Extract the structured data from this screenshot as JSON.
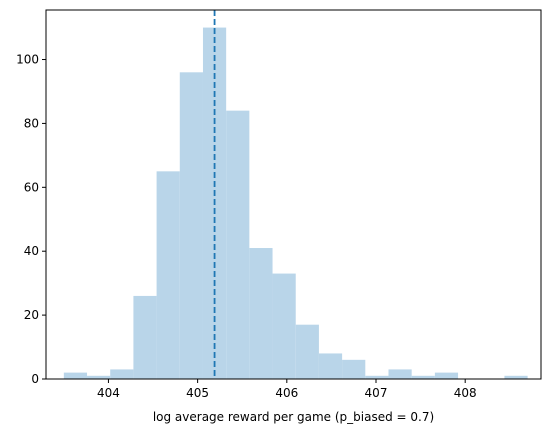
{
  "chart_data": {
    "type": "bar",
    "subtype": "histogram",
    "title": "",
    "xlabel": "log average reward per game (p_biased = 0.7)",
    "ylabel": "",
    "xlim": [
      403.3,
      408.85
    ],
    "ylim": [
      0,
      115.5
    ],
    "xticks": [
      404,
      405,
      406,
      407,
      408
    ],
    "yticks": [
      0,
      20,
      40,
      60,
      80,
      100
    ],
    "bar_color": "#b9d5e9",
    "line_color": "#1f77b4",
    "bins": [
      {
        "x0": 403.5,
        "x1": 403.76,
        "count": 2
      },
      {
        "x0": 403.76,
        "x1": 404.02,
        "count": 1
      },
      {
        "x0": 404.02,
        "x1": 404.28,
        "count": 3
      },
      {
        "x0": 404.28,
        "x1": 404.54,
        "count": 26
      },
      {
        "x0": 404.54,
        "x1": 404.8,
        "count": 65
      },
      {
        "x0": 404.8,
        "x1": 405.06,
        "count": 96
      },
      {
        "x0": 405.06,
        "x1": 405.32,
        "count": 110
      },
      {
        "x0": 405.32,
        "x1": 405.58,
        "count": 84
      },
      {
        "x0": 405.58,
        "x1": 405.84,
        "count": 41
      },
      {
        "x0": 405.84,
        "x1": 406.1,
        "count": 33
      },
      {
        "x0": 406.1,
        "x1": 406.36,
        "count": 17
      },
      {
        "x0": 406.36,
        "x1": 406.62,
        "count": 8
      },
      {
        "x0": 406.62,
        "x1": 406.88,
        "count": 6
      },
      {
        "x0": 406.88,
        "x1": 407.14,
        "count": 1
      },
      {
        "x0": 407.14,
        "x1": 407.4,
        "count": 3
      },
      {
        "x0": 407.4,
        "x1": 407.66,
        "count": 1
      },
      {
        "x0": 407.66,
        "x1": 407.92,
        "count": 2
      },
      {
        "x0": 407.92,
        "x1": 408.18,
        "count": 0
      },
      {
        "x0": 408.18,
        "x1": 408.44,
        "count": 0
      },
      {
        "x0": 408.44,
        "x1": 408.7,
        "count": 1
      }
    ],
    "reference_line": {
      "x": 405.19,
      "style": "dashed"
    },
    "grid": false,
    "legend": "none"
  }
}
